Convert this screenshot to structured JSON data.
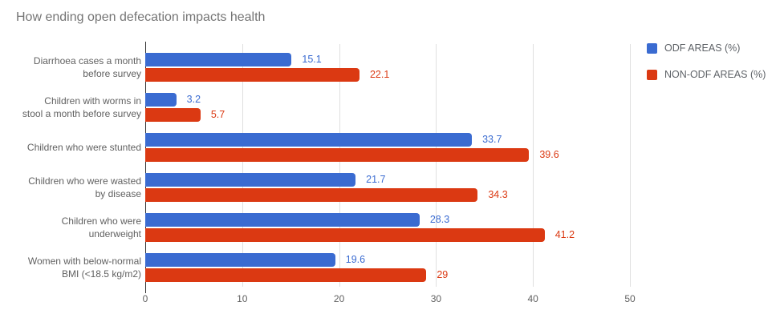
{
  "title": "How ending open defecation impacts health",
  "chart_data": {
    "type": "bar",
    "orientation": "horizontal",
    "title": "How ending open defecation impacts health",
    "categories": [
      "Diarrhoea cases a month before survey",
      "Children with worms in stool a month before survey",
      "Children who were stunted",
      "Children who were wasted by disease",
      "Children who were underweight",
      "Women with below-normal BMI (<18.5 kg/m2)"
    ],
    "category_lines": [
      [
        "Diarrhoea cases a month",
        "before survey"
      ],
      [
        "Children with worms in",
        "stool a month before survey"
      ],
      [
        "Children who were stunted"
      ],
      [
        "Children who were wasted",
        "by disease"
      ],
      [
        "Children who were",
        "underweight"
      ],
      [
        "Women with below-normal",
        "BMI (<18.5 kg/m2)"
      ]
    ],
    "series": [
      {
        "name": "ODF AREAS (%)",
        "color": "#3A6BD1",
        "values": [
          15.1,
          3.2,
          33.7,
          21.7,
          28.3,
          19.6
        ],
        "value_labels": [
          "15.1",
          "3.2",
          "33.7",
          "21.7",
          "28.3",
          "19.6"
        ]
      },
      {
        "name": "NON-ODF AREAS (%)",
        "color": "#DB3912",
        "values": [
          22.1,
          5.7,
          39.6,
          34.3,
          41.2,
          29
        ],
        "value_labels": [
          "22.1",
          "5.7",
          "39.6",
          "34.3",
          "41.2",
          "29"
        ]
      }
    ],
    "xlim": [
      0,
      50
    ],
    "x_ticks": [
      "0",
      "10",
      "20",
      "30",
      "40",
      "50"
    ],
    "grid": true,
    "legend_position": "right"
  },
  "colors": {
    "series_blue": "#3A6BD1",
    "series_red": "#DB3912",
    "title_text": "#757575",
    "axis_text": "#616161",
    "legend_text": "#5F6368",
    "gridline": "#E0E0E0",
    "axis_line": "#333333",
    "background": "#FFFFFF"
  }
}
